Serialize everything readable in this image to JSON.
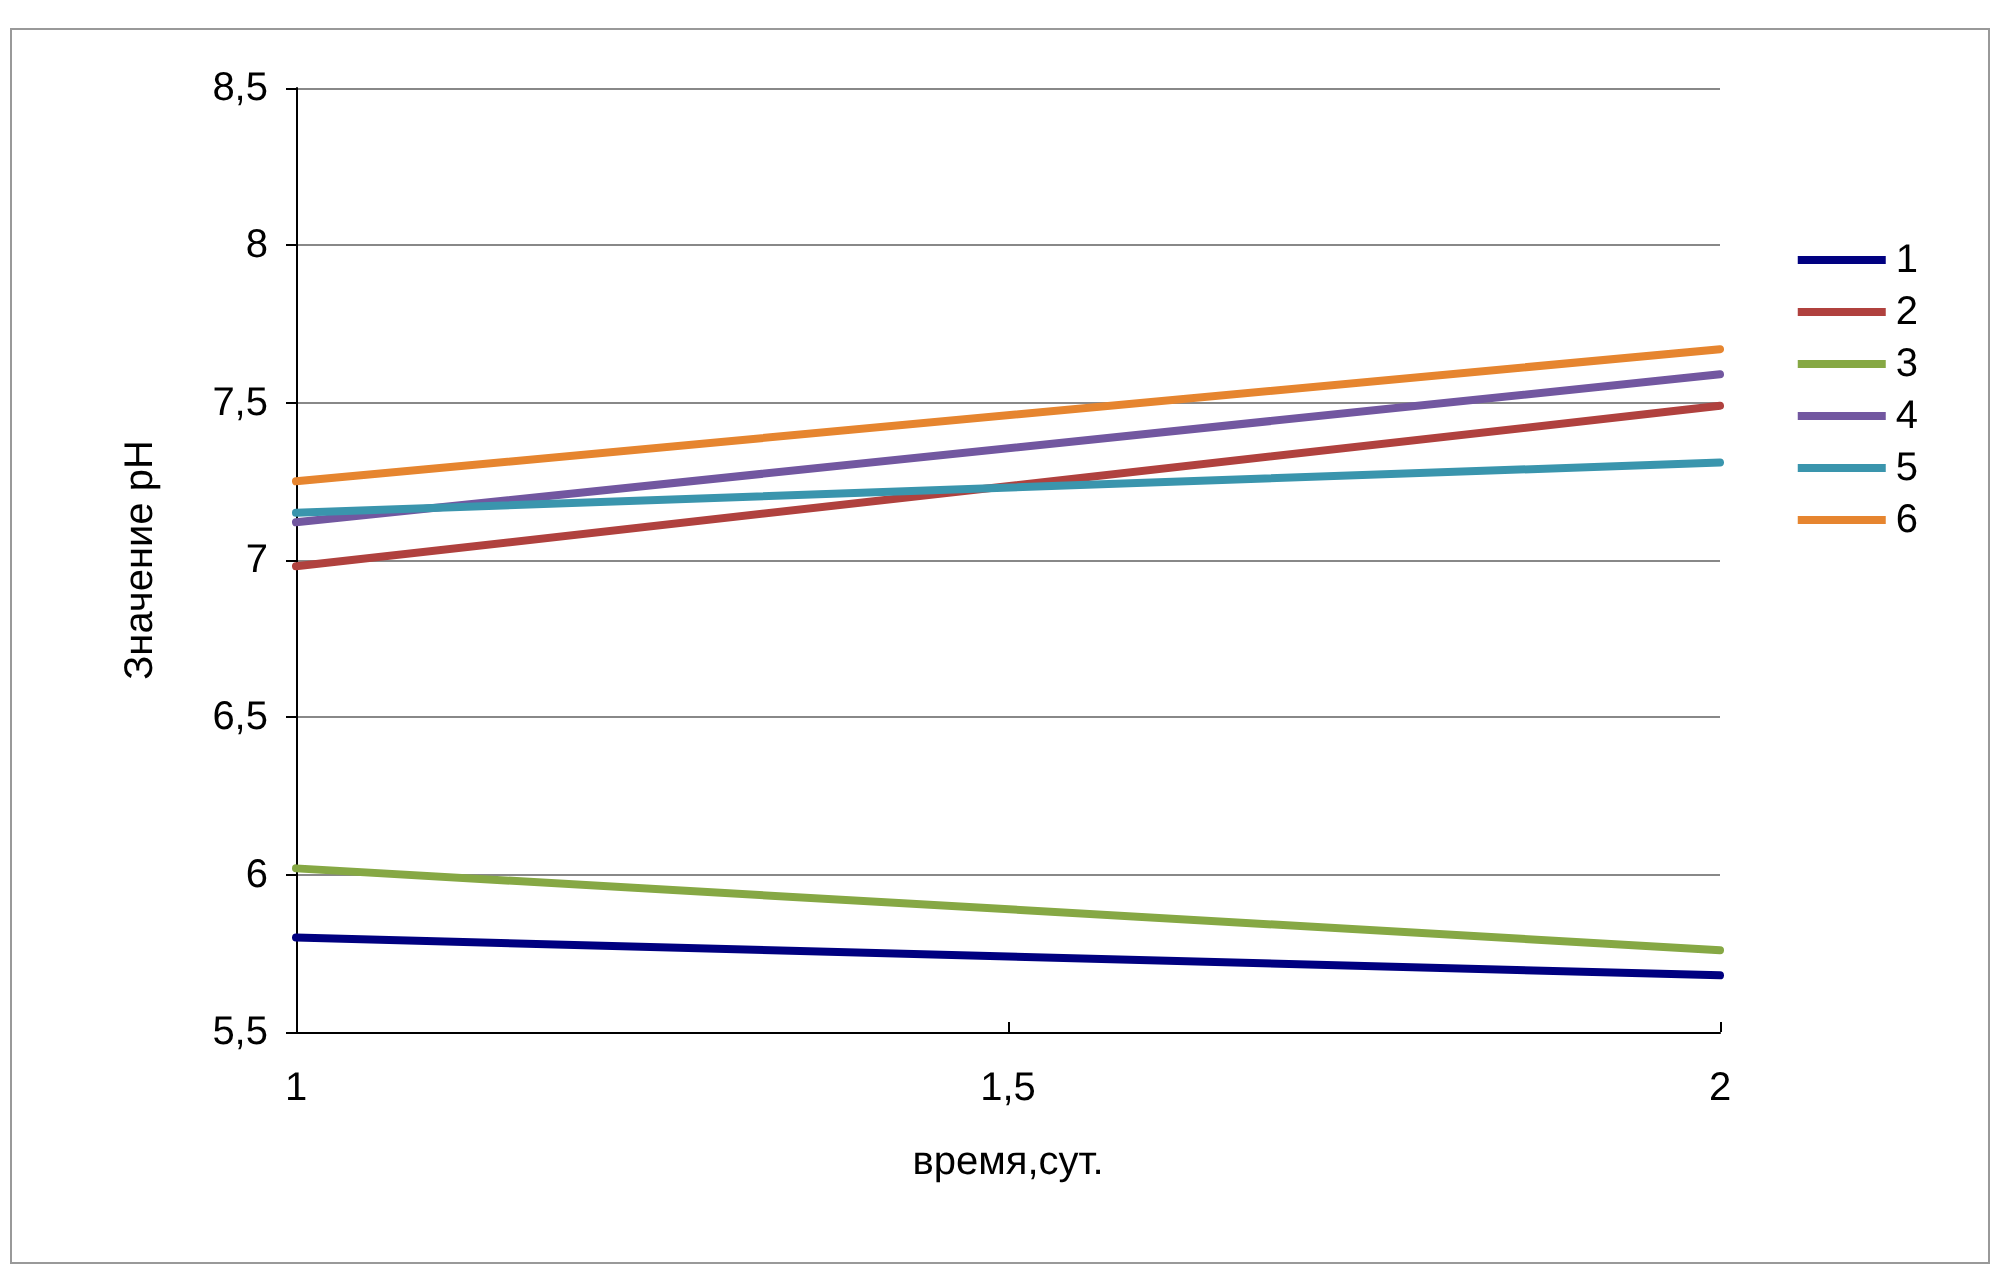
{
  "chart_data": {
    "type": "line",
    "xlabel": "время,сут.",
    "ylabel": "Значение pH",
    "x": [
      1,
      2
    ],
    "series": [
      {
        "name": "1",
        "color": "#000080",
        "values": [
          5.8,
          5.68
        ]
      },
      {
        "name": "2",
        "color": "#b0413e",
        "values": [
          6.98,
          7.49
        ]
      },
      {
        "name": "3",
        "color": "#86a844",
        "values": [
          6.02,
          5.76
        ]
      },
      {
        "name": "4",
        "color": "#7257a0",
        "values": [
          7.12,
          7.59
        ]
      },
      {
        "name": "5",
        "color": "#3a95ad",
        "values": [
          7.15,
          7.31
        ]
      },
      {
        "name": "6",
        "color": "#e6852f",
        "values": [
          7.25,
          7.67
        ]
      }
    ],
    "xlim": [
      1,
      2
    ],
    "xticks": [
      {
        "value": 1,
        "label": "1"
      },
      {
        "value": 1.5,
        "label": "1,5"
      },
      {
        "value": 2,
        "label": "2"
      }
    ],
    "ylim": [
      5.5,
      8.5
    ],
    "yticks": [
      {
        "value": 5.5,
        "label": "5,5"
      },
      {
        "value": 6,
        "label": "6"
      },
      {
        "value": 6.5,
        "label": "6,5"
      },
      {
        "value": 7,
        "label": "7"
      },
      {
        "value": 7.5,
        "label": "7,5"
      },
      {
        "value": 8,
        "label": "8"
      },
      {
        "value": 8.5,
        "label": "8,5"
      }
    ],
    "grid": "y",
    "legend": "right",
    "marker": "none",
    "line_style": "solid"
  }
}
